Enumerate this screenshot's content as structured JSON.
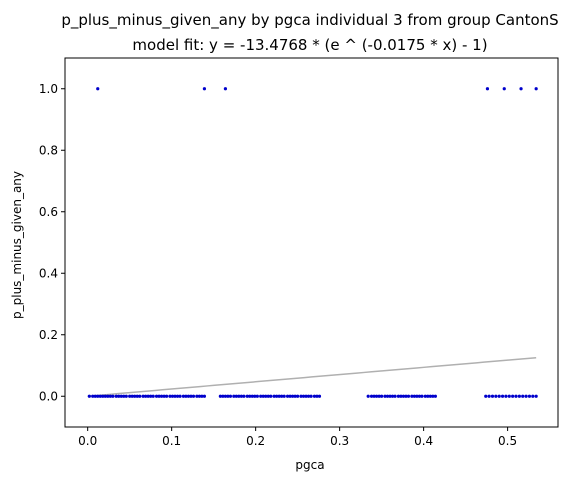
{
  "chart_data": {
    "type": "scatter",
    "title": "p_plus_minus_given_any by pgca individual 3 from group CantonS",
    "subtitle": "model fit: y = -13.4768 * (e ^ (-0.0175 * x) - 1)",
    "xlabel": "pgca",
    "ylabel": "p_plus_minus_given_any",
    "xlim": [
      -0.027,
      0.56
    ],
    "ylim": [
      -0.1,
      1.1
    ],
    "x_ticks": [
      0.0,
      0.1,
      0.2,
      0.3,
      0.4,
      0.5
    ],
    "x_tick_labels": [
      "0.0",
      "0.1",
      "0.2",
      "0.3",
      "0.4",
      "0.5"
    ],
    "y_ticks": [
      0.0,
      0.2,
      0.4,
      0.6,
      0.8,
      1.0
    ],
    "y_tick_labels": [
      "0.0",
      "0.2",
      "0.4",
      "0.6",
      "0.8",
      "1.0"
    ],
    "grid": false,
    "legend": "none",
    "point_color": "#0000cc",
    "fit_color": "#b0b0b0",
    "fit": {
      "a": -13.4768,
      "b": -0.0175,
      "x_range": [
        0.0,
        0.534
      ]
    },
    "series": [
      {
        "name": "observations",
        "x": [
          0.012,
          0.139,
          0.164,
          0.476,
          0.496,
          0.516,
          0.534,
          0.002,
          0.006,
          0.009,
          0.012,
          0.015,
          0.018,
          0.021,
          0.024,
          0.027,
          0.03,
          0.034,
          0.037,
          0.04,
          0.043,
          0.046,
          0.05,
          0.053,
          0.056,
          0.059,
          0.062,
          0.066,
          0.069,
          0.072,
          0.075,
          0.078,
          0.082,
          0.085,
          0.088,
          0.091,
          0.094,
          0.098,
          0.101,
          0.104,
          0.107,
          0.11,
          0.114,
          0.117,
          0.12,
          0.123,
          0.126,
          0.13,
          0.133,
          0.136,
          0.139,
          0.158,
          0.161,
          0.164,
          0.167,
          0.17,
          0.174,
          0.177,
          0.18,
          0.183,
          0.186,
          0.19,
          0.193,
          0.196,
          0.199,
          0.202,
          0.206,
          0.209,
          0.212,
          0.215,
          0.218,
          0.222,
          0.225,
          0.228,
          0.231,
          0.234,
          0.238,
          0.241,
          0.244,
          0.247,
          0.25,
          0.254,
          0.257,
          0.26,
          0.263,
          0.266,
          0.27,
          0.273,
          0.276,
          0.334,
          0.338,
          0.341,
          0.344,
          0.347,
          0.35,
          0.354,
          0.357,
          0.36,
          0.363,
          0.366,
          0.37,
          0.373,
          0.376,
          0.379,
          0.382,
          0.386,
          0.389,
          0.392,
          0.395,
          0.398,
          0.402,
          0.405,
          0.408,
          0.411,
          0.414,
          0.474,
          0.478,
          0.482,
          0.486,
          0.49,
          0.494,
          0.498,
          0.502,
          0.506,
          0.51,
          0.514,
          0.518,
          0.522,
          0.526,
          0.53,
          0.534
        ],
        "y": [
          1,
          1,
          1,
          1,
          1,
          1,
          1,
          0,
          0,
          0,
          0,
          0,
          0,
          0,
          0,
          0,
          0,
          0,
          0,
          0,
          0,
          0,
          0,
          0,
          0,
          0,
          0,
          0,
          0,
          0,
          0,
          0,
          0,
          0,
          0,
          0,
          0,
          0,
          0,
          0,
          0,
          0,
          0,
          0,
          0,
          0,
          0,
          0,
          0,
          0,
          0,
          0,
          0,
          0,
          0,
          0,
          0,
          0,
          0,
          0,
          0,
          0,
          0,
          0,
          0,
          0,
          0,
          0,
          0,
          0,
          0,
          0,
          0,
          0,
          0,
          0,
          0,
          0,
          0,
          0,
          0,
          0,
          0,
          0,
          0,
          0,
          0,
          0,
          0,
          0,
          0,
          0,
          0,
          0,
          0,
          0,
          0,
          0,
          0,
          0,
          0,
          0,
          0,
          0,
          0,
          0,
          0,
          0,
          0,
          0,
          0,
          0,
          0,
          0,
          0,
          0,
          0,
          0,
          0,
          0,
          0,
          0,
          0,
          0,
          0,
          0,
          0,
          0,
          0,
          0,
          0
        ]
      }
    ]
  }
}
